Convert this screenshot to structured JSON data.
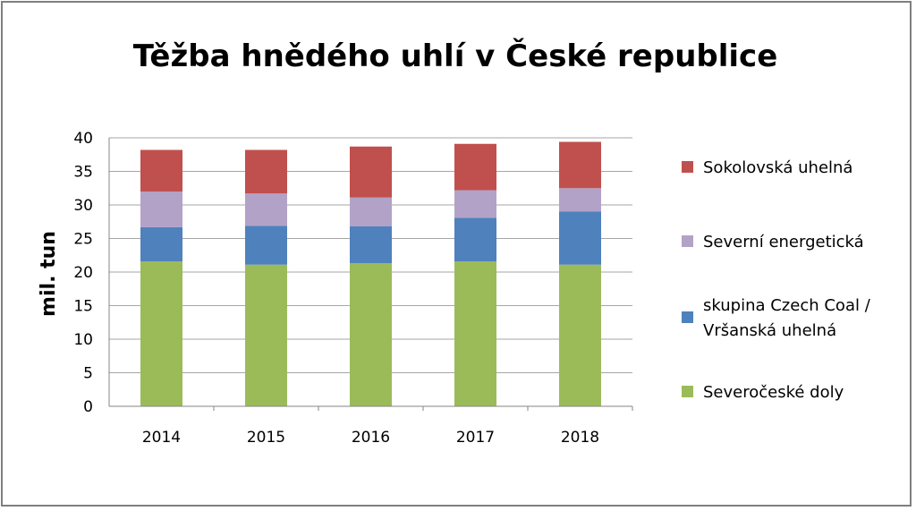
{
  "chart_data": {
    "type": "bar",
    "stacked": true,
    "title": "Těžba hnědého uhlí v České republice",
    "xlabel": "",
    "ylabel": "mil. tun",
    "ylim": [
      0,
      40
    ],
    "yticks": [
      0,
      5,
      10,
      15,
      20,
      25,
      30,
      35,
      40
    ],
    "grid": true,
    "legend_position": "right",
    "categories": [
      "2014",
      "2015",
      "2016",
      "2017",
      "2018"
    ],
    "series": [
      {
        "name": "Severočeské doly",
        "color": "#9bbb59",
        "values": [
          21.6,
          21.1,
          21.3,
          21.6,
          21.1
        ]
      },
      {
        "name": "skupina Czech Coal / Vršanská uhelná",
        "legend_lines": [
          "skupina Czech Coal /",
          "Vršanská uhelná"
        ],
        "color": "#4f81bd",
        "values": [
          5.1,
          5.8,
          5.5,
          6.5,
          7.9
        ]
      },
      {
        "name": "Severní energetická",
        "color": "#b3a2c7",
        "values": [
          5.3,
          4.8,
          4.3,
          4.1,
          3.5
        ]
      },
      {
        "name": "Sokolovská uhelná",
        "color": "#c0504d",
        "values": [
          6.2,
          6.5,
          7.6,
          6.9,
          6.9
        ]
      }
    ]
  }
}
